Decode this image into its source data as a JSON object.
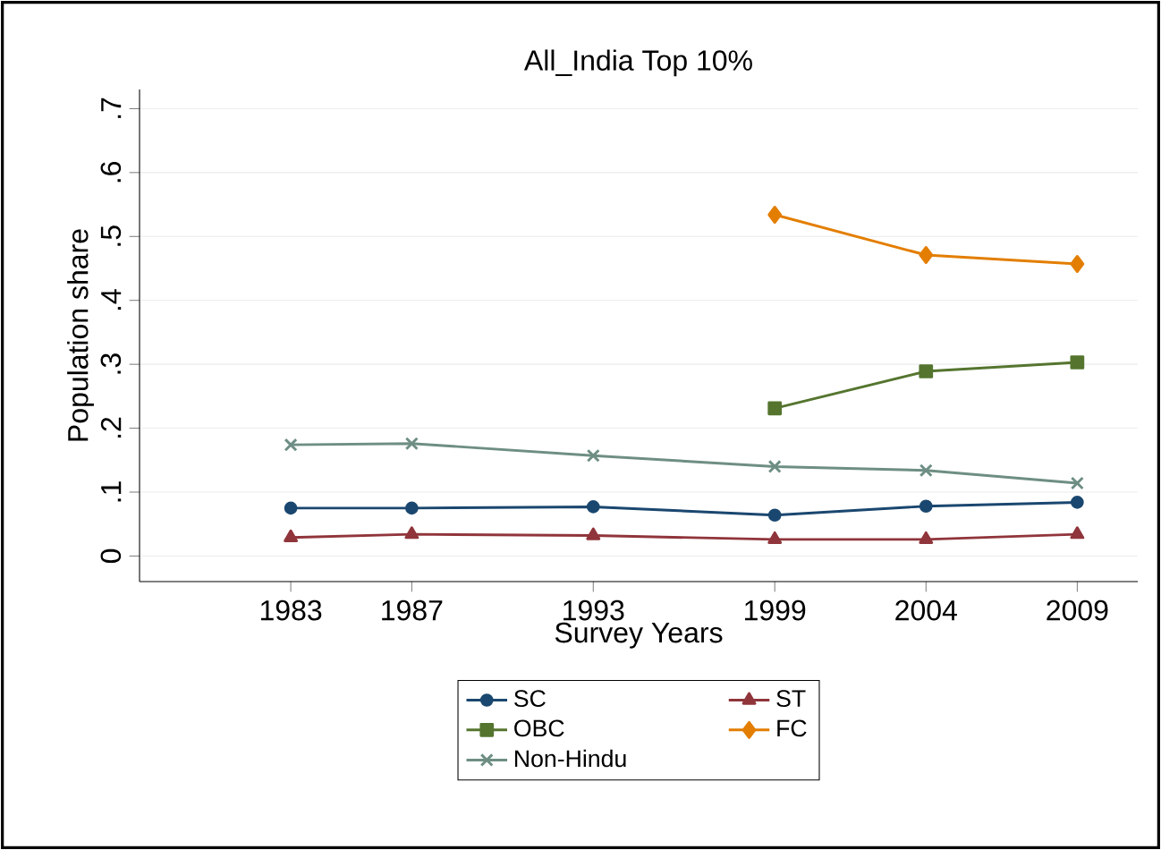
{
  "chart_data": {
    "type": "line",
    "title": "All_India Top 10%",
    "xlabel": "Survey Years",
    "ylabel": "Population share",
    "xlim": [
      1978,
      2011
    ],
    "xticks": [
      1983,
      1987,
      1993,
      1999,
      2004,
      2009
    ],
    "ylim": [
      -0.04,
      0.73
    ],
    "yticks": [
      0,
      {
        "value": 0.1,
        "label": ".1"
      },
      {
        "value": 0.2,
        "label": ".2"
      },
      {
        "value": 0.3,
        "label": ".3"
      },
      {
        "value": 0.4,
        "label": ".4"
      },
      {
        "value": 0.5,
        "label": ".5"
      },
      {
        "value": 0.6,
        "label": ".6"
      },
      {
        "value": 0.7,
        "label": ".7"
      }
    ],
    "grid": "y",
    "legend": "bottom",
    "series": [
      {
        "name": "SC",
        "color": "#1a476f",
        "marker": "circle",
        "x": [
          1983,
          1987,
          1993,
          1999,
          2004,
          2009
        ],
        "values": [
          0.075,
          0.075,
          0.077,
          0.064,
          0.078,
          0.084
        ]
      },
      {
        "name": "ST",
        "color": "#90353b",
        "marker": "triangle",
        "x": [
          1983,
          1987,
          1993,
          1999,
          2004,
          2009
        ],
        "values": [
          0.029,
          0.034,
          0.032,
          0.026,
          0.026,
          0.034
        ]
      },
      {
        "name": "OBC",
        "color": "#55752f",
        "marker": "square",
        "x": [
          1999,
          2004,
          2009
        ],
        "values": [
          0.231,
          0.289,
          0.303
        ]
      },
      {
        "name": "FC",
        "color": "#e37e00",
        "marker": "diamond",
        "x": [
          1999,
          2004,
          2009
        ],
        "values": [
          0.534,
          0.471,
          0.457
        ]
      },
      {
        "name": "Non-Hindu",
        "color": "#6e8e84",
        "marker": "cross",
        "x": [
          1983,
          1987,
          1993,
          1999,
          2004,
          2009
        ],
        "values": [
          0.174,
          0.176,
          0.157,
          0.14,
          0.134,
          0.114
        ]
      }
    ]
  }
}
